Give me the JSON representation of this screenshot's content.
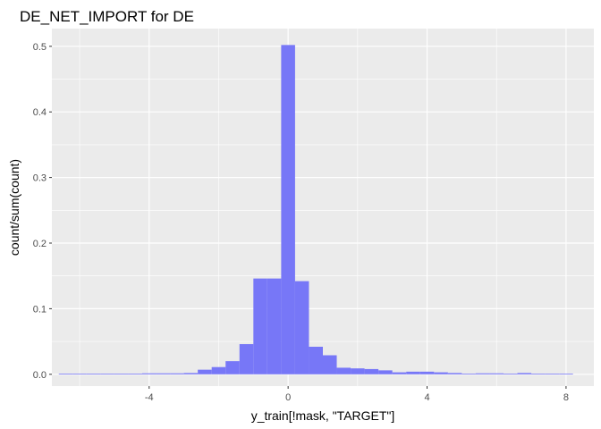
{
  "chart_data": {
    "type": "bar",
    "title": "DE_NET_IMPORT  for DE",
    "xlabel": "y_train[!mask, \"TARGET\"]",
    "ylabel": "count/sum(count)",
    "xlim": [
      -6.8,
      8.8
    ],
    "ylim": [
      -0.018,
      0.527
    ],
    "x_ticks": [
      -4,
      0,
      4,
      8
    ],
    "x_tick_labels": [
      "-4",
      "0",
      "4",
      "8"
    ],
    "y_ticks": [
      0.0,
      0.1,
      0.2,
      0.3,
      0.4,
      0.5
    ],
    "y_tick_labels": [
      "0.0",
      "0.1",
      "0.2",
      "0.3",
      "0.4",
      "0.5"
    ],
    "grid": true,
    "bin_width": 0.4,
    "bar_color": "#7777F7",
    "panel_color": "#EBEBEB",
    "grid_color": "#FFFFFF",
    "series": [
      {
        "bins": [
          {
            "x": -6.4,
            "value": 0.0006
          },
          {
            "x": -6.0,
            "value": 0.0
          },
          {
            "x": -5.6,
            "value": 0.0
          },
          {
            "x": -5.2,
            "value": 0.0
          },
          {
            "x": -4.8,
            "value": 0.0
          },
          {
            "x": -4.4,
            "value": 0.0
          },
          {
            "x": -4.0,
            "value": 0.0015
          },
          {
            "x": -3.6,
            "value": 0.0015
          },
          {
            "x": -3.2,
            "value": 0.0015
          },
          {
            "x": -2.8,
            "value": 0.002
          },
          {
            "x": -2.4,
            "value": 0.007
          },
          {
            "x": -2.0,
            "value": 0.011
          },
          {
            "x": -1.6,
            "value": 0.02
          },
          {
            "x": -1.2,
            "value": 0.046
          },
          {
            "x": -0.8,
            "value": 0.146
          },
          {
            "x": -0.4,
            "value": 0.146
          },
          {
            "x": 0.0,
            "value": 0.502
          },
          {
            "x": 0.4,
            "value": 0.142
          },
          {
            "x": 0.8,
            "value": 0.042
          },
          {
            "x": 1.2,
            "value": 0.029
          },
          {
            "x": 1.6,
            "value": 0.01
          },
          {
            "x": 2.0,
            "value": 0.009
          },
          {
            "x": 2.4,
            "value": 0.008
          },
          {
            "x": 2.8,
            "value": 0.006
          },
          {
            "x": 3.2,
            "value": 0.003
          },
          {
            "x": 3.6,
            "value": 0.004
          },
          {
            "x": 4.0,
            "value": 0.004
          },
          {
            "x": 4.4,
            "value": 0.003
          },
          {
            "x": 4.8,
            "value": 0.002
          },
          {
            "x": 5.2,
            "value": 0.001
          },
          {
            "x": 5.6,
            "value": 0.0015
          },
          {
            "x": 6.0,
            "value": 0.0015
          },
          {
            "x": 6.4,
            "value": 0.0
          },
          {
            "x": 6.8,
            "value": 0.002
          },
          {
            "x": 7.2,
            "value": 0.0
          },
          {
            "x": 7.6,
            "value": 0.0
          },
          {
            "x": 8.0,
            "value": 0.0006
          }
        ]
      }
    ]
  }
}
